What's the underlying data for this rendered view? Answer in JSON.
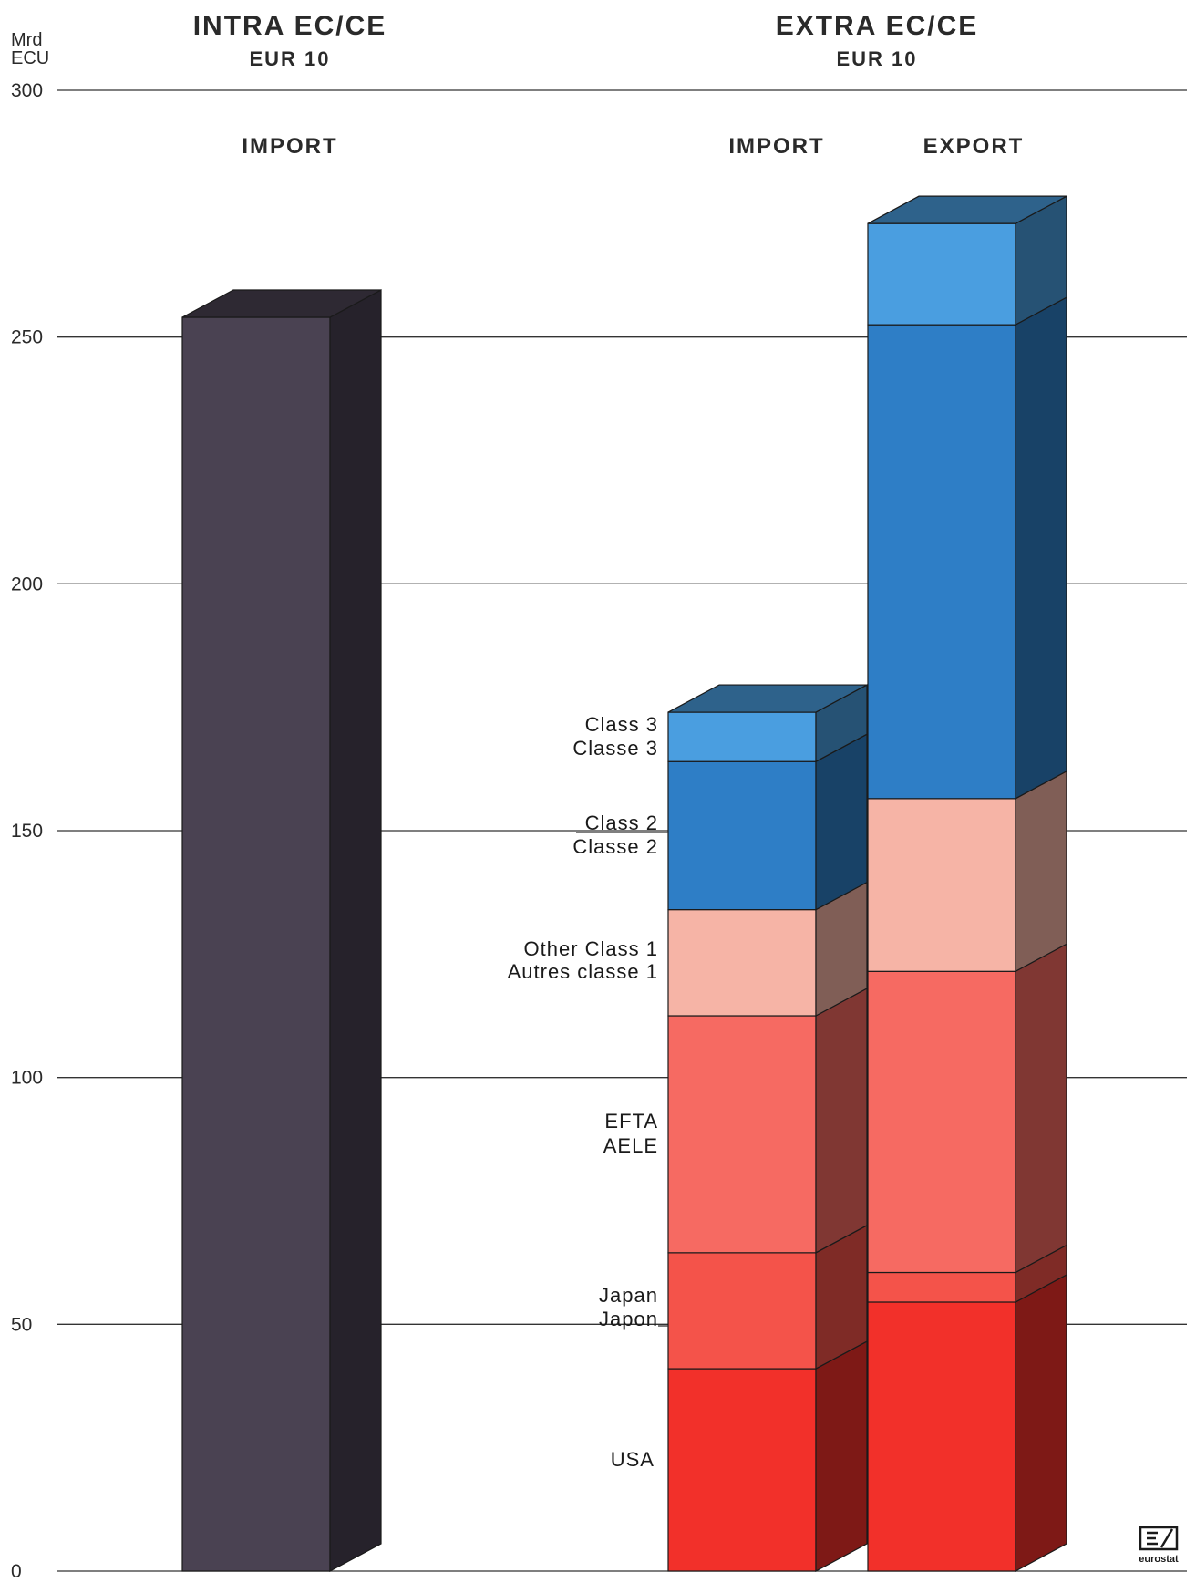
{
  "headers": {
    "intra_title": "INTRA EC/CE",
    "intra_sub": "EUR 10",
    "extra_title": "EXTRA EC/CE",
    "extra_sub": "EUR 10"
  },
  "axis": {
    "unit_line1": "Mrd",
    "unit_line2": "ECU"
  },
  "columns": {
    "intra_import": "IMPORT",
    "extra_import": "IMPORT",
    "extra_export": "EXPORT"
  },
  "segment_labels": {
    "class3_en": "Class 3",
    "class3_fr": "Classe 3",
    "class2_en": "Class 2",
    "class2_fr": "Classe 2",
    "other1_en": "Other Class 1",
    "other1_fr": "Autres classe 1",
    "efta_en": "EFTA",
    "efta_fr": "AELE",
    "japan_en": "Japan",
    "japan_fr": "Japon",
    "usa": "USA"
  },
  "logo": {
    "text": "eurostat"
  },
  "colors": {
    "intra": "#4a4252",
    "usa": "#f2302a",
    "japan": "#f4534a",
    "efta": "#f66a62",
    "other_class1": "#f6b4a6",
    "class2": "#2e7ec6",
    "class3": "#4a9ee0"
  },
  "chart_data": {
    "type": "bar",
    "stacked": true,
    "ylim": [
      0,
      300
    ],
    "yticks": [
      0,
      50,
      100,
      150,
      200,
      250,
      300
    ],
    "ylabel": "Mrd ECU",
    "grid": true,
    "bars": [
      {
        "group": "INTRA EC/CE EUR 10",
        "name": "IMPORT",
        "segments": [
          {
            "name": "INTRA EC/CE",
            "value": 254
          }
        ]
      },
      {
        "group": "EXTRA EC/CE EUR 10",
        "name": "IMPORT",
        "segments": [
          {
            "name": "USA",
            "value": 41
          },
          {
            "name": "Japan",
            "value": 23.5
          },
          {
            "name": "EFTA",
            "value": 48
          },
          {
            "name": "Other Class 1",
            "value": 21.5
          },
          {
            "name": "Class 2",
            "value": 30
          },
          {
            "name": "Class 3",
            "value": 10
          }
        ]
      },
      {
        "group": "EXTRA EC/CE EUR 10",
        "name": "EXPORT",
        "segments": [
          {
            "name": "USA",
            "value": 54.5
          },
          {
            "name": "Japan",
            "value": 6
          },
          {
            "name": "EFTA",
            "value": 61
          },
          {
            "name": "Other Class 1",
            "value": 35
          },
          {
            "name": "Class 2",
            "value": 96
          },
          {
            "name": "Class 3",
            "value": 20.5
          }
        ]
      }
    ]
  }
}
